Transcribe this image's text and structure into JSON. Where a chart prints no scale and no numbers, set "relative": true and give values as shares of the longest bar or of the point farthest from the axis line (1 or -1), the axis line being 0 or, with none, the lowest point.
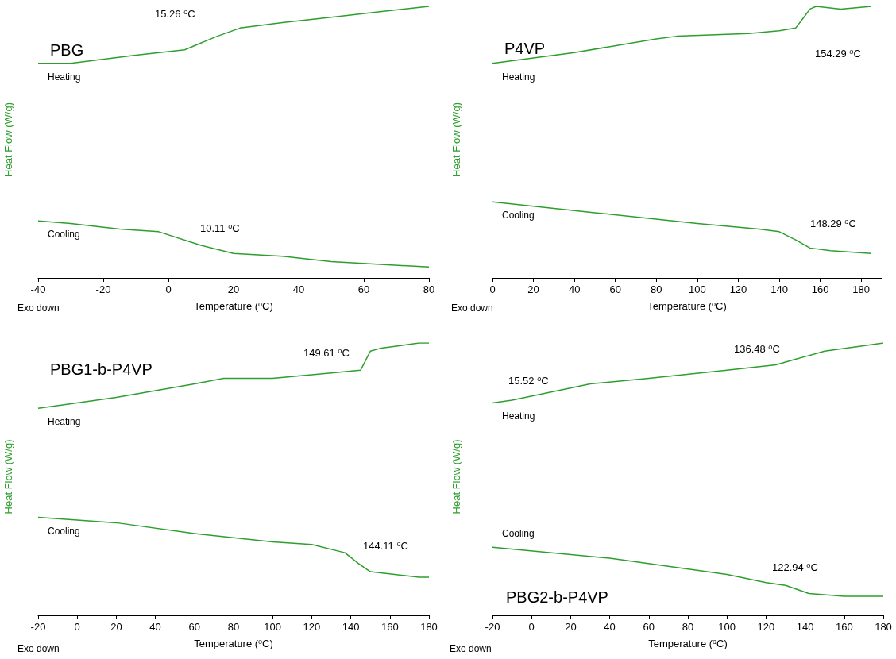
{
  "chart_data": [
    {
      "type": "line",
      "title": "PBG",
      "xlabel": "Temperature ($^{o}$C)",
      "ylabel": "Heat Flow (W/g)",
      "relative": true,
      "xlim": [
        -40,
        80
      ],
      "xticks": [
        -40,
        -20,
        0,
        20,
        40,
        60,
        80
      ],
      "marker": "none",
      "line_style": "solid",
      "grid": false,
      "annotations": [
        "15.26 $^{o}$C",
        "10.11 $^{o}$C",
        "Exo down"
      ],
      "series": [
        {
          "name": "Heating",
          "color": "#2e9e2e",
          "x": [
            -40,
            -30,
            -10,
            5,
            15,
            22,
            35,
            50,
            65,
            80
          ],
          "values": [
            0.79,
            0.79,
            0.82,
            0.84,
            0.89,
            0.92,
            0.94,
            0.96,
            0.98,
            1
          ]
        },
        {
          "name": "Cooling",
          "color": "#2e9e2e",
          "x": [
            -40,
            -30,
            -15,
            -3,
            10,
            20,
            35,
            50,
            80
          ],
          "values": [
            0.21,
            0.2,
            0.18,
            0.17,
            0.12,
            0.09,
            0.08,
            0.06,
            0.04
          ]
        }
      ]
    },
    {
      "type": "line",
      "title": "P4VP",
      "xlabel": "Temperature ($^{o}$C)",
      "ylabel": "Heat Flow (W/g)",
      "relative": true,
      "xlim": [
        0,
        190
      ],
      "xticks": [
        0,
        20,
        40,
        60,
        80,
        100,
        120,
        140,
        160,
        180
      ],
      "marker": "none",
      "line_style": "solid",
      "grid": false,
      "annotations": [
        "154.29 $^{o}$C",
        "148.29 $^{o}$C",
        "Exo down"
      ],
      "series": [
        {
          "name": "Heating",
          "color": "#2e9e2e",
          "x": [
            0,
            40,
            80,
            90,
            125,
            140,
            148,
            152,
            155,
            158,
            170,
            185
          ],
          "values": [
            0.79,
            0.83,
            0.88,
            0.89,
            0.9,
            0.91,
            0.92,
            0.96,
            0.99,
            1,
            0.99,
            1
          ]
        },
        {
          "name": "Cooling",
          "color": "#2e9e2e",
          "x": [
            0,
            50,
            100,
            130,
            140,
            148,
            155,
            165,
            185
          ],
          "values": [
            0.28,
            0.24,
            0.2,
            0.18,
            0.17,
            0.14,
            0.11,
            0.1,
            0.09
          ]
        }
      ]
    },
    {
      "type": "line",
      "title": "PBG1-b-P4VP",
      "xlabel": "Temperature ($^{o}$C)",
      "ylabel": "Heat Flow (W/g)",
      "relative": true,
      "xlim": [
        -20,
        180
      ],
      "xticks": [
        -20,
        0,
        20,
        40,
        60,
        80,
        100,
        120,
        140,
        160,
        180
      ],
      "marker": "none",
      "line_style": "solid",
      "grid": false,
      "annotations": [
        "149.61 $^{o}$C",
        "144.11 $^{o}$C",
        "Exo down"
      ],
      "series": [
        {
          "name": "Heating",
          "color": "#2e9e2e",
          "x": [
            -20,
            20,
            60,
            75,
            100,
            130,
            145,
            150,
            155,
            175,
            180
          ],
          "values": [
            0.76,
            0.8,
            0.85,
            0.87,
            0.87,
            0.89,
            0.9,
            0.97,
            0.98,
            1,
            1
          ]
        },
        {
          "name": "Cooling",
          "color": "#2e9e2e",
          "x": [
            -20,
            20,
            60,
            100,
            120,
            137,
            144,
            150,
            175,
            180
          ],
          "values": [
            0.36,
            0.34,
            0.3,
            0.27,
            0.26,
            0.23,
            0.19,
            0.16,
            0.14,
            0.14
          ]
        }
      ]
    },
    {
      "type": "line",
      "title": "PBG2-b-P4VP",
      "xlabel": "Temperature ($^{o}$C)",
      "ylabel": "Heat Flow (W/g)",
      "relative": true,
      "xlim": [
        -20,
        180
      ],
      "xticks": [
        -20,
        0,
        20,
        40,
        60,
        80,
        100,
        120,
        140,
        160,
        180
      ],
      "marker": "none",
      "line_style": "solid",
      "grid": false,
      "annotations": [
        "15.52 $^{o}$C",
        "136.48 $^{o}$C",
        "122.94 $^{o}$C",
        "Exo down"
      ],
      "series": [
        {
          "name": "Heating",
          "color": "#2e9e2e",
          "x": [
            -20,
            -10,
            10,
            30,
            60,
            100,
            125,
            135,
            140,
            150,
            170,
            180
          ],
          "values": [
            0.78,
            0.79,
            0.82,
            0.85,
            0.87,
            0.9,
            0.92,
            0.94,
            0.95,
            0.97,
            0.99,
            1
          ]
        },
        {
          "name": "Cooling",
          "color": "#2e9e2e",
          "x": [
            -20,
            40,
            100,
            120,
            130,
            142,
            160,
            180
          ],
          "values": [
            0.25,
            0.21,
            0.15,
            0.12,
            0.11,
            0.08,
            0.07,
            0.07
          ]
        }
      ]
    }
  ]
}
